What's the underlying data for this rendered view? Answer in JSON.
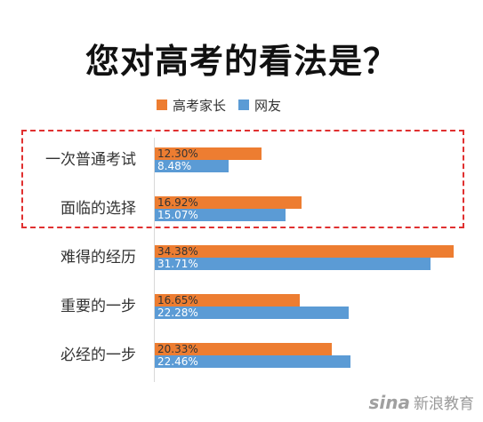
{
  "title": "您对高考的看法是？",
  "legend": {
    "series1": "高考家长",
    "series2": "网友"
  },
  "colors": {
    "series1": "#ed7d31",
    "series2": "#5b9bd5",
    "highlight": "#e03030"
  },
  "watermark": {
    "logo": "sina",
    "text": "新浪教育"
  },
  "chart_data": {
    "type": "bar",
    "orientation": "horizontal",
    "categories": [
      "一次普通考试",
      "面临的选择",
      "难得的经历",
      "重要的一步",
      "必经的一步"
    ],
    "series": [
      {
        "name": "高考家长",
        "values": [
          12.3,
          16.92,
          34.38,
          16.65,
          20.33
        ]
      },
      {
        "name": "网友",
        "values": [
          8.48,
          15.07,
          31.71,
          22.28,
          22.46
        ]
      }
    ],
    "value_labels": {
      "series1": [
        "12.30%",
        "16.92%",
        "34.38%",
        "16.65%",
        "20.33%"
      ],
      "series2": [
        "8.48%",
        "15.07%",
        "31.71%",
        "22.28%",
        "22.46%"
      ]
    },
    "xlim": [
      0,
      35
    ],
    "grid": false,
    "legend_position": "top",
    "highlighted_categories": [
      "一次普通考试",
      "面临的选择"
    ]
  }
}
